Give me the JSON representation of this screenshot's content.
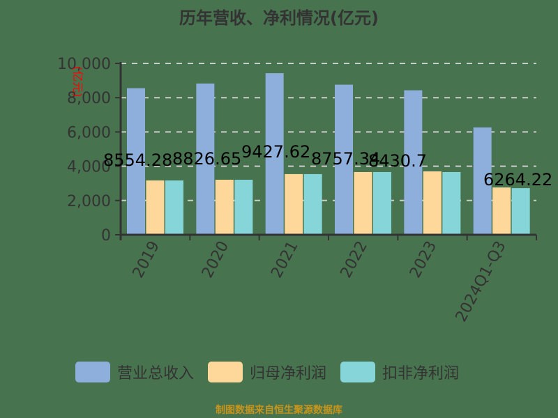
{
  "title": "历年营收、净利情况(亿元)",
  "source": "制图数据来自恒生聚源数据库",
  "legend": [
    {
      "label": "营业总收入",
      "color": "#8eaedc"
    },
    {
      "label": "归母净利润",
      "color": "#fdd89a"
    },
    {
      "label": "扣非净利润",
      "color": "#86d6d9"
    }
  ],
  "colors": {
    "background": "#48734f",
    "axis": "#333333",
    "grid": "#cccccc",
    "unit_label": "#ff0000",
    "data_label": "#000000",
    "source": "#c7951c"
  },
  "chart_data": {
    "type": "bar",
    "title": "历年营收、净利情况(亿元)",
    "xlabel": "",
    "ylabel": "(亿元)",
    "ylim": [
      0,
      10000
    ],
    "yticks": [
      0,
      2000,
      4000,
      6000,
      8000,
      10000
    ],
    "ytick_labels": [
      "0",
      "2,000",
      "4,000",
      "6,000",
      "8,000",
      "10,000"
    ],
    "grid": true,
    "legend_position": "bottom",
    "categories": [
      "2019",
      "2020",
      "2021",
      "2022",
      "2023",
      "2024Q1-Q3"
    ],
    "series": [
      {
        "name": "营业总收入",
        "values": [
          8554.28,
          8826.65,
          9427.62,
          8757.34,
          8430.7,
          6264.22
        ],
        "data_labels": [
          "8554.28",
          "8826.65",
          "9427.62",
          "8757.34",
          "8430.7",
          "6264.22"
        ]
      },
      {
        "name": "归母净利润",
        "values": [
          3170,
          3210,
          3540,
          3660,
          3700,
          2760
        ]
      },
      {
        "name": "扣非净利润",
        "values": [
          3170,
          3210,
          3540,
          3660,
          3660,
          2720
        ]
      }
    ]
  }
}
